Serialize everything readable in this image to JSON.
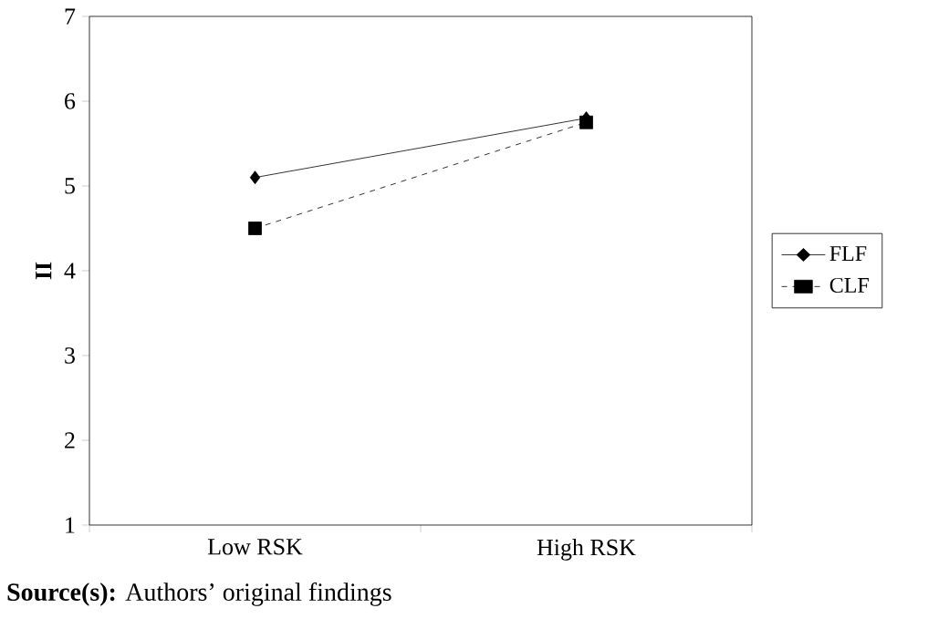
{
  "chart_data": {
    "type": "line",
    "ylabel": "II",
    "categories": [
      "Low RSK",
      "High RSK"
    ],
    "series": [
      {
        "name": "FLF",
        "color": "#000000",
        "values": [
          5.1,
          5.8
        ],
        "marker": "diamond",
        "line_style": "solid"
      },
      {
        "name": "CLF",
        "color": "#000000",
        "values": [
          4.5,
          5.75
        ],
        "marker": "square",
        "line_style": "dashed"
      }
    ],
    "ylim": [
      1,
      7
    ],
    "yticks": [
      1,
      2,
      3,
      4,
      5,
      6,
      7
    ],
    "legend": "right",
    "grid": false,
    "annotations": [
      "**Source(s):** Authors’ original findings"
    ]
  }
}
